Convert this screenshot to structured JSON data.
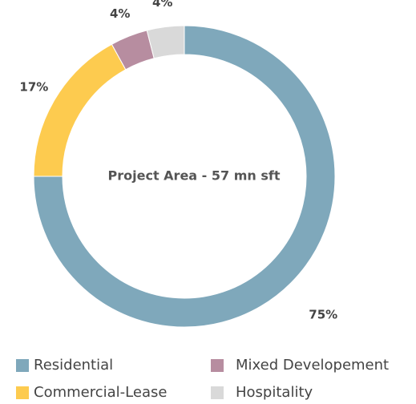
{
  "chart_data": {
    "type": "donut",
    "center_text": "Project Area - 57 mn sft",
    "categories": [
      "Residential",
      "Commercial-Lease",
      "Mixed Developement",
      "Hospitality"
    ],
    "values": [
      75,
      17,
      4,
      4
    ],
    "value_labels": [
      "75%",
      "17%",
      "4%",
      "4%"
    ],
    "colors": [
      "#7fa8bb",
      "#fdcb4f",
      "#b78da0",
      "#d9d9d9"
    ]
  }
}
